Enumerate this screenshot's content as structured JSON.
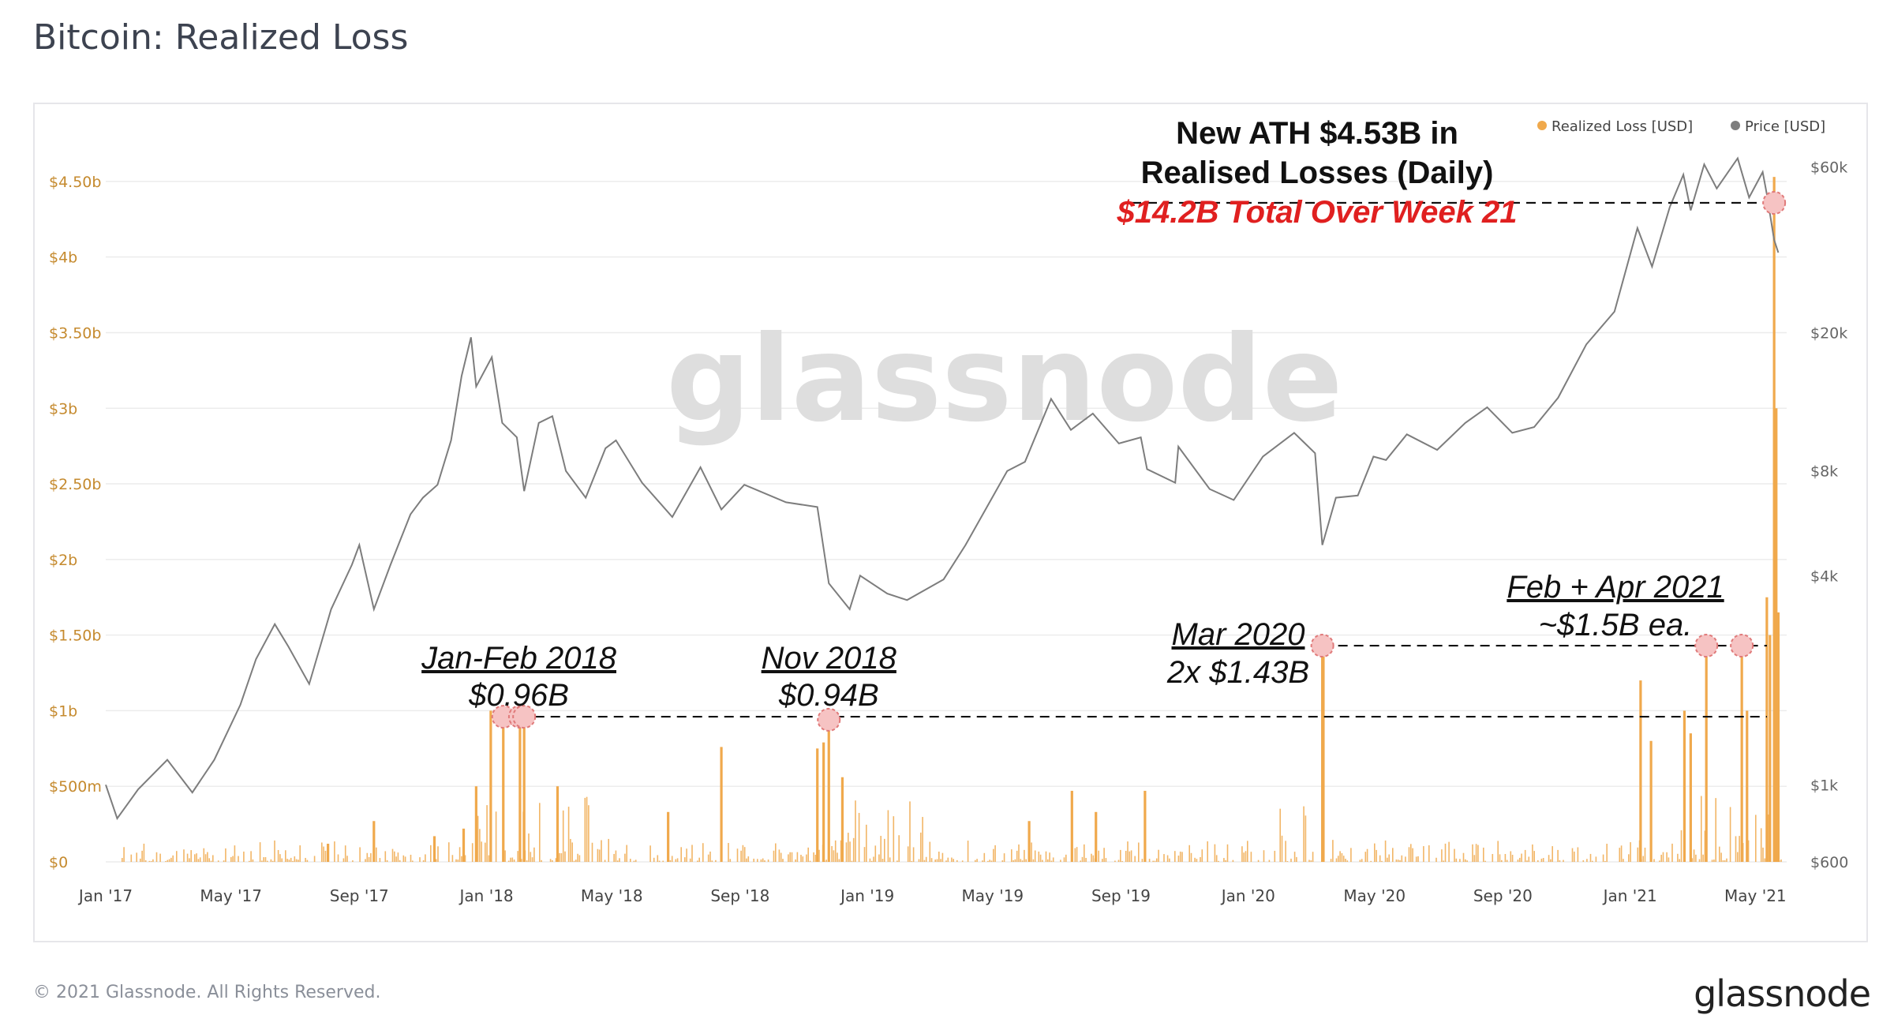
{
  "page": {
    "title": "Bitcoin: Realized Loss",
    "copyright": "© 2021 Glassnode. All Rights Reserved.",
    "brand": "glassnode",
    "watermark": "glassnode"
  },
  "colors": {
    "loss": "#f0a94c",
    "price": "#7d7d7d",
    "left_axis_text": "#c58a2e",
    "annotation_red": "#e02020",
    "marker_fill": "#f6c3c3",
    "marker_stroke": "#e07a7a",
    "grid": "#ececec"
  },
  "chart_data": {
    "type": "bar+line",
    "legend": {
      "position": "top-right",
      "items": [
        {
          "label": "Realized Loss [USD]",
          "color": "#f0a94c"
        },
        {
          "label": "Price [USD]",
          "color": "#7d7d7d"
        }
      ]
    },
    "x_axis": {
      "range": [
        "2017-01-01",
        "2021-05-31"
      ],
      "ticks": [
        {
          "label": "Jan '17",
          "date": "2017-01-01"
        },
        {
          "label": "May '17",
          "date": "2017-05-01"
        },
        {
          "label": "Sep '17",
          "date": "2017-09-01"
        },
        {
          "label": "Jan '18",
          "date": "2018-01-01"
        },
        {
          "label": "May '18",
          "date": "2018-05-01"
        },
        {
          "label": "Sep '18",
          "date": "2018-09-01"
        },
        {
          "label": "Jan '19",
          "date": "2019-01-01"
        },
        {
          "label": "May '19",
          "date": "2019-05-01"
        },
        {
          "label": "Sep '19",
          "date": "2019-09-01"
        },
        {
          "label": "Jan '20",
          "date": "2020-01-01"
        },
        {
          "label": "May '20",
          "date": "2020-05-01"
        },
        {
          "label": "Sep '20",
          "date": "2020-09-01"
        },
        {
          "label": "Jan '21",
          "date": "2021-01-01"
        },
        {
          "label": "May '21",
          "date": "2021-05-01"
        }
      ]
    },
    "left_axis": {
      "name": "Realized Loss [USD]",
      "unit": "USD",
      "range": [
        0,
        4750000000
      ],
      "ticks": [
        {
          "label": "$0",
          "value": 0
        },
        {
          "label": "$500m",
          "value": 500000000
        },
        {
          "label": "$1b",
          "value": 1000000000
        },
        {
          "label": "$1.50b",
          "value": 1500000000
        },
        {
          "label": "$2b",
          "value": 2000000000
        },
        {
          "label": "$2.50b",
          "value": 2500000000
        },
        {
          "label": "$3b",
          "value": 3000000000
        },
        {
          "label": "$3.50b",
          "value": 3500000000
        },
        {
          "label": "$4b",
          "value": 4000000000
        },
        {
          "label": "$4.50b",
          "value": 4500000000
        }
      ]
    },
    "right_axis": {
      "name": "Price [USD]",
      "scale": "log",
      "range": [
        600,
        70000
      ],
      "ticks": [
        {
          "label": "$600",
          "value": 600
        },
        {
          "label": "$1k",
          "value": 1000
        },
        {
          "label": "$4k",
          "value": 4000
        },
        {
          "label": "$8k",
          "value": 8000
        },
        {
          "label": "$20k",
          "value": 20000
        },
        {
          "label": "$60k",
          "value": 60000
        }
      ]
    },
    "price_series": [
      [
        "2017-01-01",
        1000
      ],
      [
        "2017-01-12",
        800
      ],
      [
        "2017-02-01",
        970
      ],
      [
        "2017-03-01",
        1180
      ],
      [
        "2017-03-25",
        950
      ],
      [
        "2017-04-15",
        1180
      ],
      [
        "2017-05-10",
        1700
      ],
      [
        "2017-05-25",
        2300
      ],
      [
        "2017-06-12",
        2900
      ],
      [
        "2017-06-25",
        2500
      ],
      [
        "2017-07-15",
        1950
      ],
      [
        "2017-08-05",
        3200
      ],
      [
        "2017-08-25",
        4300
      ],
      [
        "2017-09-01",
        4900
      ],
      [
        "2017-09-15",
        3200
      ],
      [
        "2017-10-01",
        4300
      ],
      [
        "2017-10-20",
        6000
      ],
      [
        "2017-11-01",
        6700
      ],
      [
        "2017-11-15",
        7300
      ],
      [
        "2017-11-28",
        9800
      ],
      [
        "2017-12-08",
        15000
      ],
      [
        "2017-12-17",
        19400
      ],
      [
        "2017-12-22",
        14000
      ],
      [
        "2018-01-06",
        17000
      ],
      [
        "2018-01-16",
        11000
      ],
      [
        "2018-01-30",
        10000
      ],
      [
        "2018-02-06",
        7000
      ],
      [
        "2018-02-20",
        11000
      ],
      [
        "2018-03-05",
        11500
      ],
      [
        "2018-03-18",
        8000
      ],
      [
        "2018-04-06",
        6700
      ],
      [
        "2018-04-25",
        9300
      ],
      [
        "2018-05-05",
        9800
      ],
      [
        "2018-05-30",
        7400
      ],
      [
        "2018-06-28",
        5900
      ],
      [
        "2018-07-25",
        8200
      ],
      [
        "2018-08-14",
        6200
      ],
      [
        "2018-09-05",
        7300
      ],
      [
        "2018-10-15",
        6500
      ],
      [
        "2018-11-14",
        6300
      ],
      [
        "2018-11-25",
        3800
      ],
      [
        "2018-12-15",
        3200
      ],
      [
        "2018-12-25",
        4000
      ],
      [
        "2019-01-20",
        3550
      ],
      [
        "2019-02-08",
        3400
      ],
      [
        "2019-03-15",
        3900
      ],
      [
        "2019-04-05",
        4900
      ],
      [
        "2019-05-15",
        8000
      ],
      [
        "2019-06-01",
        8500
      ],
      [
        "2019-06-26",
        12900
      ],
      [
        "2019-07-15",
        10500
      ],
      [
        "2019-08-05",
        11700
      ],
      [
        "2019-08-30",
        9600
      ],
      [
        "2019-09-20",
        10000
      ],
      [
        "2019-09-26",
        8100
      ],
      [
        "2019-10-23",
        7400
      ],
      [
        "2019-10-26",
        9400
      ],
      [
        "2019-11-25",
        7100
      ],
      [
        "2019-12-18",
        6600
      ],
      [
        "2020-01-15",
        8800
      ],
      [
        "2020-02-14",
        10300
      ],
      [
        "2020-03-05",
        9000
      ],
      [
        "2020-03-12",
        4900
      ],
      [
        "2020-03-25",
        6700
      ],
      [
        "2020-04-15",
        6800
      ],
      [
        "2020-04-30",
        8800
      ],
      [
        "2020-05-12",
        8600
      ],
      [
        "2020-06-01",
        10200
      ],
      [
        "2020-06-30",
        9200
      ],
      [
        "2020-07-27",
        11000
      ],
      [
        "2020-08-17",
        12200
      ],
      [
        "2020-09-10",
        10300
      ],
      [
        "2020-10-01",
        10700
      ],
      [
        "2020-10-24",
        13000
      ],
      [
        "2020-11-20",
        18500
      ],
      [
        "2020-12-17",
        23000
      ],
      [
        "2021-01-08",
        40000
      ],
      [
        "2021-01-22",
        31000
      ],
      [
        "2021-02-08",
        46000
      ],
      [
        "2021-02-21",
        57000
      ],
      [
        "2021-02-28",
        45000
      ],
      [
        "2021-03-13",
        61000
      ],
      [
        "2021-03-25",
        52000
      ],
      [
        "2021-04-14",
        63500
      ],
      [
        "2021-04-25",
        49000
      ],
      [
        "2021-05-08",
        58000
      ],
      [
        "2021-05-12",
        50000
      ],
      [
        "2021-05-19",
        37000
      ],
      [
        "2021-05-23",
        34000
      ]
    ],
    "loss_spikes": [
      [
        "2017-08-02",
        120000000
      ],
      [
        "2017-09-15",
        270000000
      ],
      [
        "2017-11-12",
        170000000
      ],
      [
        "2017-12-10",
        220000000
      ],
      [
        "2017-12-22",
        500000000
      ],
      [
        "2018-01-05",
        1000000000
      ],
      [
        "2018-01-17",
        960000000
      ],
      [
        "2018-02-02",
        960000000
      ],
      [
        "2018-02-06",
        960000000
      ],
      [
        "2018-03-10",
        500000000
      ],
      [
        "2018-06-24",
        330000000
      ],
      [
        "2018-08-14",
        760000000
      ],
      [
        "2018-11-14",
        750000000
      ],
      [
        "2018-11-20",
        790000000
      ],
      [
        "2018-11-25",
        940000000
      ],
      [
        "2018-12-08",
        560000000
      ],
      [
        "2019-06-05",
        270000000
      ],
      [
        "2019-07-16",
        470000000
      ],
      [
        "2019-08-08",
        330000000
      ],
      [
        "2019-09-24",
        470000000
      ],
      [
        "2020-03-12",
        1430000000
      ],
      [
        "2020-03-13",
        1430000000
      ],
      [
        "2021-01-11",
        1200000000
      ],
      [
        "2021-01-21",
        800000000
      ],
      [
        "2021-02-22",
        1000000000
      ],
      [
        "2021-02-28",
        850000000
      ],
      [
        "2021-03-15",
        1500000000
      ],
      [
        "2021-04-18",
        1500000000
      ],
      [
        "2021-04-23",
        1000000000
      ],
      [
        "2021-05-12",
        1750000000
      ],
      [
        "2021-05-15",
        1500000000
      ],
      [
        "2021-05-19",
        4530000000
      ],
      [
        "2021-05-21",
        3000000000
      ],
      [
        "2021-05-23",
        1650000000
      ]
    ],
    "annotations": [
      {
        "title": "Jan-Feb 2018",
        "value_text": "$0.96B",
        "dates": [
          "2018-01-17",
          "2018-02-02",
          "2018-02-06"
        ],
        "level": 960000000
      },
      {
        "title": "Nov 2018",
        "value_text": "$0.94B",
        "dates": [
          "2018-11-25"
        ],
        "level": 940000000
      },
      {
        "title": "Mar 2020",
        "value_text": "2x $1.43B",
        "dates": [
          "2020-03-12"
        ],
        "level": 1430000000
      },
      {
        "title": "Feb + Apr 2021",
        "value_text": "~$1.5B ea.",
        "dates": [
          "2021-03-15",
          "2021-04-18"
        ],
        "level": 1430000000
      },
      {
        "title": "New ATH $4.53B in",
        "subtitle": "Realised Losses (Daily)",
        "highlight": "$14.2B Total Over Week 21",
        "dates": [
          "2021-05-19"
        ],
        "level": 4530000000
      }
    ]
  }
}
